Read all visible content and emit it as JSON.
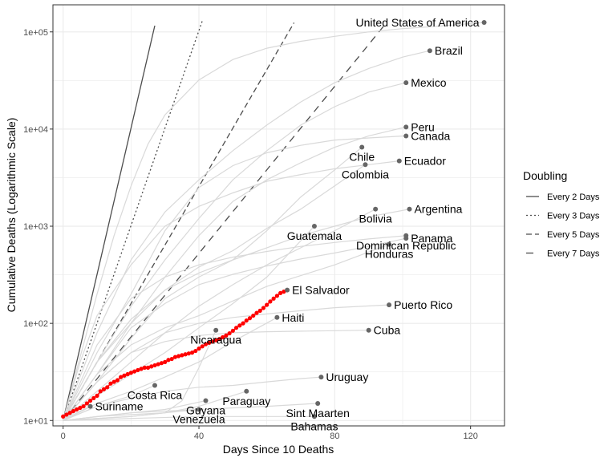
{
  "chart_data": {
    "type": "line",
    "xlabel": "Days Since 10 Deaths",
    "ylabel": "Cumulative Deaths (Logarithmic Scale)",
    "xlim": [
      -3,
      130
    ],
    "ylim": [
      8.8,
      190000
    ],
    "y_scale": "log",
    "grid": true,
    "legend_position": "right",
    "x_ticks": [
      0,
      40,
      80,
      120
    ],
    "x_tick_labels": [
      "0",
      "40",
      "80",
      "120"
    ],
    "y_ticks": [
      10,
      100,
      1000,
      10000,
      100000
    ],
    "y_tick_labels": [
      "1e+01",
      "1e+02",
      "1e+03",
      "1e+04",
      "1e+05"
    ],
    "legend": {
      "title": "Doubling",
      "entries": [
        {
          "label": "Every 2 Days",
          "days": 2,
          "dash": ""
        },
        {
          "label": "Every 3 Days",
          "days": 3,
          "dash": "2,3"
        },
        {
          "label": "Every 5 Days",
          "days": 5,
          "dash": "7,4"
        },
        {
          "label": "Every 7 Days",
          "days": 7,
          "dash": "9,7"
        }
      ]
    },
    "reference_lines": [
      {
        "label": "Every 2 Days",
        "days": 2,
        "x_end": 27
      },
      {
        "label": "Every 3 Days",
        "days": 3,
        "x_end": 41
      },
      {
        "label": "Every 5 Days",
        "days": 5,
        "x_end": 68
      },
      {
        "label": "Every 7 Days",
        "days": 7,
        "x_end": 95
      }
    ],
    "colors": {
      "highlight": "#ff0000",
      "background_series": "#d9d9d9",
      "endpoint": "#666666",
      "reference": "#4d4d4d",
      "grid": "#ebebeb",
      "panel_border": "#333333"
    },
    "series": [
      {
        "name": "United States of America",
        "x": [
          0,
          5,
          10,
          15,
          20,
          25,
          30,
          40,
          50,
          60,
          70,
          80,
          90,
          100,
          110,
          124
        ],
        "y": [
          10,
          45,
          200,
          800,
          2600,
          7000,
          14000,
          32000,
          52000,
          68000,
          80000,
          90000,
          100000,
          108000,
          114000,
          125000
        ],
        "label_anchor": "end"
      },
      {
        "name": "Brazil",
        "x": [
          0,
          10,
          20,
          30,
          40,
          50,
          60,
          70,
          80,
          90,
          100,
          108
        ],
        "y": [
          10,
          80,
          450,
          1400,
          3000,
          6000,
          11000,
          19000,
          30000,
          42000,
          55000,
          64000
        ],
        "label_anchor": "start"
      },
      {
        "name": "Mexico",
        "x": [
          0,
          10,
          20,
          30,
          40,
          50,
          60,
          70,
          80,
          90,
          101
        ],
        "y": [
          10,
          40,
          150,
          450,
          1200,
          3000,
          6000,
          11000,
          17000,
          24000,
          30000
        ],
        "label_anchor": "start"
      },
      {
        "name": "Peru",
        "x": [
          0,
          10,
          20,
          30,
          40,
          50,
          60,
          70,
          80,
          90,
          101
        ],
        "y": [
          10,
          30,
          100,
          300,
          800,
          1800,
          3000,
          4500,
          6500,
          8500,
          10500
        ],
        "label_anchor": "start"
      },
      {
        "name": "Canada",
        "x": [
          0,
          10,
          20,
          30,
          40,
          50,
          60,
          70,
          80,
          90,
          101
        ],
        "y": [
          10,
          50,
          200,
          900,
          2500,
          4200,
          5700,
          6800,
          7700,
          8100,
          8500
        ],
        "label_anchor": "start"
      },
      {
        "name": "Chile",
        "x": [
          0,
          10,
          20,
          30,
          40,
          50,
          60,
          70,
          80,
          88
        ],
        "y": [
          10,
          25,
          70,
          180,
          300,
          450,
          900,
          2000,
          3800,
          6500
        ],
        "label_anchor": "middle"
      },
      {
        "name": "Ecuador",
        "x": [
          0,
          5,
          10,
          20,
          30,
          40,
          50,
          60,
          70,
          80,
          90,
          99
        ],
        "y": [
          10,
          40,
          120,
          400,
          1000,
          1600,
          2200,
          2900,
          3400,
          3900,
          4300,
          4700
        ],
        "label_anchor": "start"
      },
      {
        "name": "Colombia",
        "x": [
          0,
          10,
          20,
          30,
          40,
          50,
          60,
          70,
          80,
          89
        ],
        "y": [
          10,
          40,
          100,
          220,
          380,
          560,
          950,
          1500,
          2600,
          4300
        ],
        "label_anchor": "middle"
      },
      {
        "name": "Bolivia",
        "x": [
          0,
          10,
          20,
          30,
          40,
          50,
          60,
          70,
          80,
          92
        ],
        "y": [
          10,
          20,
          40,
          80,
          150,
          250,
          400,
          600,
          900,
          1500
        ],
        "label_anchor": "middle"
      },
      {
        "name": "Argentina",
        "x": [
          0,
          10,
          20,
          30,
          40,
          50,
          60,
          70,
          80,
          90,
          102
        ],
        "y": [
          10,
          40,
          110,
          220,
          330,
          450,
          600,
          800,
          1000,
          1250,
          1500
        ],
        "label_anchor": "start"
      },
      {
        "name": "Dominican Republic",
        "x": [
          0,
          10,
          20,
          30,
          40,
          50,
          60,
          70,
          80,
          90,
          101
        ],
        "y": [
          10,
          60,
          180,
          300,
          400,
          480,
          550,
          620,
          680,
          740,
          800
        ],
        "label_anchor": "middle"
      },
      {
        "name": "Panama",
        "x": [
          0,
          10,
          20,
          30,
          40,
          50,
          60,
          70,
          80,
          90,
          101
        ],
        "y": [
          10,
          30,
          90,
          160,
          250,
          320,
          390,
          460,
          530,
          620,
          750
        ],
        "label_anchor": "start"
      },
      {
        "name": "Guatemala",
        "x": [
          0,
          10,
          20,
          30,
          40,
          50,
          60,
          74
        ],
        "y": [
          10,
          18,
          30,
          50,
          90,
          160,
          300,
          1000
        ],
        "label_anchor": "middle"
      },
      {
        "name": "Honduras",
        "x": [
          0,
          10,
          20,
          30,
          40,
          50,
          60,
          70,
          80,
          96
        ],
        "y": [
          10,
          30,
          60,
          90,
          120,
          170,
          240,
          310,
          400,
          650
        ],
        "label_anchor": "middle"
      },
      {
        "name": "El Salvador",
        "x": [
          0,
          1,
          2,
          3,
          4,
          5,
          6,
          7,
          8,
          9,
          10,
          11,
          12,
          13,
          14,
          15,
          16,
          17,
          18,
          19,
          20,
          21,
          22,
          23,
          24,
          25,
          26,
          27,
          28,
          29,
          30,
          31,
          32,
          33,
          34,
          35,
          36,
          37,
          38,
          39,
          40,
          41,
          42,
          43,
          44,
          45,
          46,
          47,
          48,
          49,
          50,
          51,
          52,
          53,
          54,
          55,
          56,
          57,
          58,
          59,
          60,
          61,
          62,
          63,
          64,
          65,
          66
        ],
        "y": [
          11,
          11.5,
          12,
          12.5,
          13,
          13.5,
          14,
          15,
          16,
          17,
          18,
          20,
          21,
          22,
          24,
          25,
          26,
          28,
          29,
          30,
          31,
          32,
          33,
          34,
          35,
          35,
          36,
          37,
          38,
          39,
          40,
          42,
          43,
          45,
          46,
          47,
          48,
          49,
          50,
          52,
          55,
          58,
          61,
          63,
          65,
          67,
          69,
          72,
          75,
          79,
          84,
          90,
          95,
          100,
          107,
          113,
          120,
          128,
          135,
          144,
          155,
          168,
          180,
          192,
          205,
          212,
          220
        ],
        "label_anchor": "start",
        "highlight": true
      },
      {
        "name": "Puerto Rico",
        "x": [
          0,
          10,
          20,
          30,
          40,
          50,
          60,
          70,
          80,
          96
        ],
        "y": [
          10,
          25,
          50,
          80,
          100,
          115,
          125,
          135,
          145,
          155
        ],
        "label_anchor": "start"
      },
      {
        "name": "Haiti",
        "x": [
          0,
          10,
          20,
          30,
          40,
          50,
          63
        ],
        "y": [
          10,
          15,
          20,
          28,
          40,
          65,
          115
        ],
        "label_anchor": "start"
      },
      {
        "name": "Cuba",
        "x": [
          0,
          10,
          20,
          30,
          40,
          50,
          60,
          70,
          80,
          90
        ],
        "y": [
          10,
          25,
          50,
          65,
          75,
          80,
          82,
          83,
          84,
          85
        ],
        "label_anchor": "start"
      },
      {
        "name": "Nicaragua",
        "x": [
          0,
          10,
          20,
          30,
          35,
          40,
          45
        ],
        "y": [
          10,
          11,
          11.5,
          12,
          16,
          35,
          85
        ],
        "label_anchor": "middle"
      },
      {
        "name": "Venezuela",
        "x": [
          0,
          10,
          20,
          30,
          40
        ],
        "y": [
          10,
          10.5,
          11,
          12,
          13
        ],
        "label_anchor": "middle"
      },
      {
        "name": "Uruguay",
        "x": [
          0,
          10,
          20,
          30,
          40,
          50,
          60,
          70,
          76
        ],
        "y": [
          10,
          14,
          17,
          20,
          22,
          23,
          25,
          27,
          28
        ],
        "label_anchor": "start"
      },
      {
        "name": "Costa Rica",
        "x": [
          0,
          10,
          20,
          27
        ],
        "y": [
          10,
          14,
          18,
          23
        ],
        "label_anchor": "middle"
      },
      {
        "name": "Paraguay",
        "x": [
          0,
          10,
          20,
          30,
          40,
          54
        ],
        "y": [
          10,
          10.5,
          11,
          12,
          14,
          20
        ],
        "label_anchor": "middle"
      },
      {
        "name": "Sint Maarten",
        "x": [
          0,
          20,
          40,
          60,
          75
        ],
        "y": [
          10,
          12,
          13,
          14,
          15
        ],
        "label_anchor": "middle"
      },
      {
        "name": "Suriname",
        "x": [
          0,
          4,
          8
        ],
        "y": [
          10,
          12,
          14
        ],
        "label_anchor": "start"
      },
      {
        "name": "Guyana",
        "x": [
          0,
          10,
          20,
          30,
          42
        ],
        "y": [
          10,
          11,
          12,
          13,
          16
        ],
        "label_anchor": "middle"
      },
      {
        "name": "Bahamas",
        "x": [
          0,
          20,
          40,
          60,
          74
        ],
        "y": [
          10,
          10.5,
          11,
          11,
          11
        ],
        "label_anchor": "middle"
      }
    ]
  }
}
